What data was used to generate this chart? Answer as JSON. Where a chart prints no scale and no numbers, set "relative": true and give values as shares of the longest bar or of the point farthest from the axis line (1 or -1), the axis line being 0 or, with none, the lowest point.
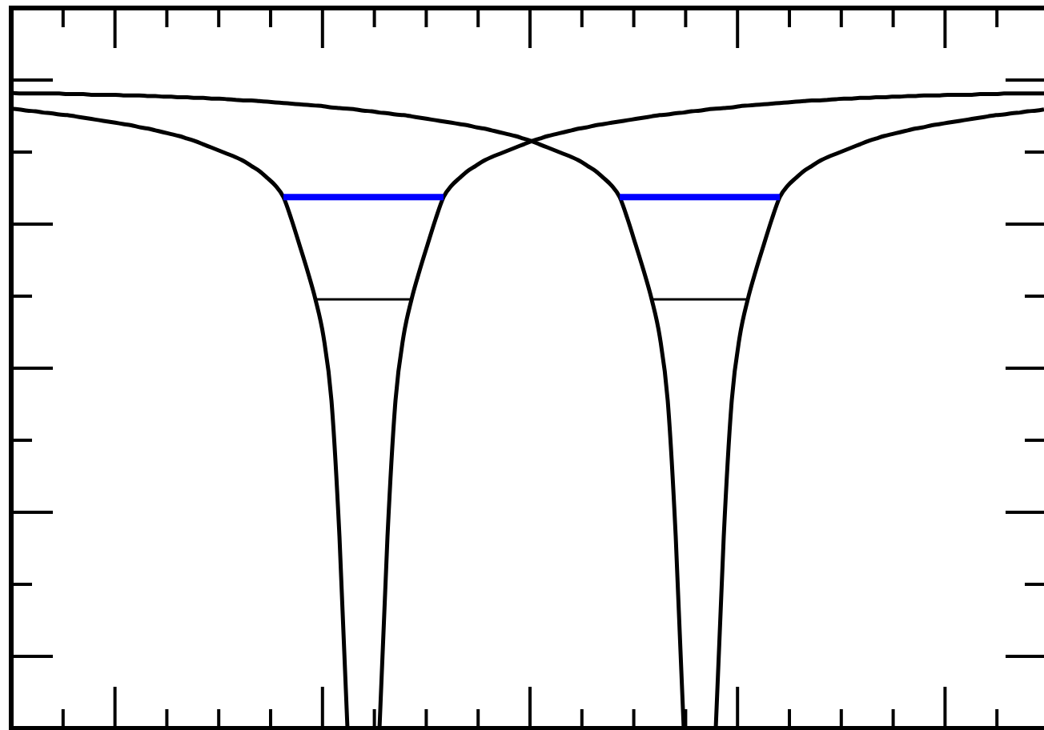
{
  "chart_data": {
    "type": "line",
    "relative": true,
    "categories": [
      null,
      null,
      null,
      null,
      null,
      null,
      null,
      null,
      null,
      null,
      null,
      null,
      null,
      null,
      null,
      null,
      null,
      null,
      null,
      null,
      null,
      null,
      null,
      null,
      null,
      null,
      null,
      null,
      null,
      null,
      null,
      null,
      null,
      null,
      null,
      null,
      null,
      null,
      null,
      null,
      null,
      null,
      null,
      null,
      null,
      null,
      null,
      null,
      null,
      null,
      null,
      null,
      null,
      null,
      null,
      null,
      null,
      null,
      null,
      null,
      null,
      null,
      null,
      null,
      null,
      null,
      null,
      null,
      null,
      null,
      null,
      null,
      null,
      null,
      null,
      null,
      null,
      null,
      null,
      null,
      null,
      null,
      null,
      null,
      null,
      null,
      null,
      null,
      null,
      null,
      null,
      null,
      null,
      null,
      null,
      null,
      null,
      null,
      null,
      null,
      null,
      null,
      null,
      null,
      null,
      null,
      null,
      null,
      null,
      null,
      null,
      null,
      null,
      null,
      null,
      null,
      null,
      null,
      null,
      null,
      null,
      null,
      null,
      null,
      null,
      null,
      null,
      null,
      null,
      null
    ],
    "series": [
      {
        "color": "#000000",
        "values": [
          0.975,
          0.974,
          0.972,
          0.971,
          0.969,
          0.968,
          0.966,
          0.965,
          0.963,
          0.961,
          0.959,
          0.957,
          0.955,
          0.953,
          0.951,
          0.949,
          0.946,
          0.944,
          0.941,
          0.938,
          0.935,
          0.932,
          0.928,
          0.924,
          0.919,
          0.914,
          0.909,
          0.904,
          0.899,
          0.893,
          0.885,
          0.877,
          0.866,
          0.854,
          0.836,
          0.801,
          0.761,
          0.72,
          0.675,
          0.617,
          0.516,
          0.302,
          0,
          null,
          null,
          null,
          0,
          0.302,
          0.516,
          0.617,
          0.675,
          0.72,
          0.761,
          0.801,
          0.836,
          0.854,
          0.866,
          0.877,
          0.885,
          0.893,
          0.899,
          0.904,
          0.909,
          0.914,
          0.919,
          0.924,
          0.928,
          0.932,
          0.935,
          0.938,
          0.941,
          0.944,
          0.946,
          0.949,
          0.951,
          0.953,
          0.955,
          0.957,
          0.959,
          0.961,
          0.963,
          0.965,
          0.966,
          0.968,
          0.969,
          0.971,
          0.972,
          0.974,
          0.975,
          0.976,
          0.977,
          0.979,
          0.98,
          0.981,
          0.982,
          0.983,
          0.984,
          0.985,
          0.986,
          0.987,
          0.988,
          0.988,
          0.989,
          0.99,
          0.991,
          0.991,
          0.992,
          0.992,
          0.993,
          0.993,
          0.994,
          0.994,
          0.995,
          0.995,
          0.996,
          0.996,
          0.996,
          0.997,
          0.997,
          0.997,
          0.997,
          0.998,
          0.998,
          0.998,
          0.999,
          0.999,
          0.999,
          0.999,
          0.999,
          0.999
        ]
      },
      {
        "color": "#000000",
        "values": [
          1,
          0.999,
          0.999,
          0.999,
          0.999,
          0.999,
          0.999,
          0.998,
          0.998,
          0.998,
          0.997,
          0.997,
          0.997,
          0.997,
          0.996,
          0.996,
          0.996,
          0.995,
          0.995,
          0.994,
          0.994,
          0.993,
          0.993,
          0.992,
          0.992,
          0.991,
          0.991,
          0.99,
          0.989,
          0.988,
          0.988,
          0.987,
          0.986,
          0.985,
          0.984,
          0.983,
          0.982,
          0.981,
          0.98,
          0.979,
          0.977,
          0.976,
          0.975,
          0.974,
          0.972,
          0.971,
          0.969,
          0.968,
          0.966,
          0.965,
          0.963,
          0.961,
          0.959,
          0.957,
          0.955,
          0.953,
          0.951,
          0.949,
          0.946,
          0.944,
          0.941,
          0.938,
          0.935,
          0.932,
          0.928,
          0.924,
          0.919,
          0.914,
          0.909,
          0.904,
          0.899,
          0.893,
          0.885,
          0.877,
          0.866,
          0.854,
          0.836,
          0.801,
          0.761,
          0.72,
          0.675,
          0.617,
          0.516,
          0.302,
          0,
          null,
          null,
          null,
          0,
          0.302,
          0.516,
          0.617,
          0.675,
          0.72,
          0.761,
          0.801,
          0.836,
          0.854,
          0.866,
          0.877,
          0.885,
          0.893,
          0.899,
          0.904,
          0.909,
          0.914,
          0.919,
          0.924,
          0.928,
          0.932,
          0.935,
          0.938,
          0.941,
          0.944,
          0.946,
          0.949,
          0.951,
          0.953,
          0.955,
          0.957,
          0.959,
          0.961,
          0.963,
          0.965,
          0.966,
          0.968,
          0.969,
          0.971,
          0.972,
          0.974
        ]
      },
      {
        "color": "#0000ff",
        "values": [
          null,
          null,
          null,
          null,
          null,
          null,
          null,
          null,
          null,
          null,
          null,
          null,
          null,
          null,
          null,
          null,
          null,
          null,
          null,
          null,
          null,
          null,
          null,
          null,
          null,
          null,
          null,
          null,
          null,
          null,
          null,
          null,
          null,
          null,
          0.836,
          0.836,
          0.836,
          0.836,
          0.836,
          0.836,
          0.836,
          0.836,
          0.836,
          0.836,
          0.836,
          0.836,
          0.836,
          0.836,
          0.836,
          0.836,
          0.836,
          0.836,
          0.836,
          0.836,
          0.836,
          null,
          null,
          null,
          null,
          null,
          null,
          null,
          null,
          null,
          null,
          null,
          null,
          null,
          null,
          null,
          null,
          null,
          null,
          null,
          null,
          null,
          0.836,
          0.836,
          0.836,
          0.836,
          0.836,
          0.836,
          0.836,
          0.836,
          0.836,
          0.836,
          0.836,
          0.836,
          0.836,
          0.836,
          0.836,
          0.836,
          0.836,
          0.836,
          0.836,
          0.836,
          0.836,
          null,
          null,
          null,
          null,
          null,
          null,
          null,
          null,
          null,
          null,
          null,
          null,
          null,
          null,
          null,
          null,
          null,
          null,
          null,
          null,
          null,
          null,
          null,
          null,
          null,
          null,
          null,
          null,
          null,
          null,
          null,
          null,
          null
        ]
      },
      {
        "color": "#000000",
        "values": [
          null,
          null,
          null,
          null,
          null,
          null,
          null,
          null,
          null,
          null,
          null,
          null,
          null,
          null,
          null,
          null,
          null,
          null,
          null,
          null,
          null,
          null,
          null,
          null,
          null,
          null,
          null,
          null,
          null,
          null,
          null,
          null,
          null,
          null,
          null,
          null,
          null,
          null,
          0.675,
          0.675,
          0.675,
          0.675,
          0.675,
          0.675,
          0.675,
          0.675,
          0.675,
          0.675,
          0.675,
          0.675,
          0.675,
          null,
          null,
          null,
          null,
          null,
          null,
          null,
          null,
          null,
          null,
          null,
          null,
          null,
          null,
          null,
          null,
          null,
          null,
          null,
          null,
          null,
          null,
          null,
          null,
          null,
          null,
          null,
          null,
          null,
          0.675,
          0.675,
          0.675,
          0.675,
          0.675,
          0.675,
          0.675,
          0.675,
          0.675,
          0.675,
          0.675,
          0.675,
          0.675,
          null,
          null,
          null,
          null,
          null,
          null,
          null,
          null,
          null,
          null,
          null,
          null,
          null,
          null,
          null,
          null,
          null,
          null,
          null,
          null,
          null,
          null,
          null,
          null,
          null,
          null,
          null,
          null,
          null,
          null,
          null,
          null,
          null,
          null,
          null,
          null,
          null
        ]
      }
    ]
  }
}
